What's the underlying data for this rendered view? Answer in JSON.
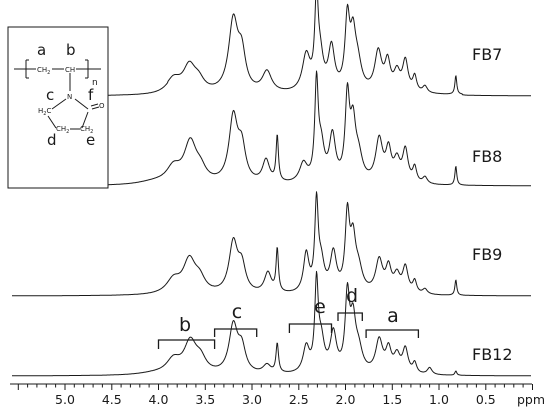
{
  "chart_data": {
    "type": "line",
    "xlabel": "ppm",
    "x_reversed": true,
    "xlim": [
      0.0,
      5.5
    ],
    "x_ticks": [
      "5.0",
      "4.5",
      "4.0",
      "3.5",
      "3.0",
      "2.5",
      "2.0",
      "1.5",
      "1.0",
      "0.5"
    ],
    "x_tick_values": [
      5.0,
      4.5,
      4.0,
      3.5,
      3.0,
      2.5,
      2.0,
      1.5,
      1.0,
      0.5
    ],
    "grid": false,
    "series": [
      {
        "name": "FB7",
        "baseline_level": 0.01,
        "peaks": [
          {
            "ppm": 3.84,
            "height": 0.16,
            "width": 0.09
          },
          {
            "ppm": 3.67,
            "height": 0.3,
            "width": 0.08
          },
          {
            "ppm": 3.57,
            "height": 0.12,
            "width": 0.07
          },
          {
            "ppm": 3.2,
            "height": 0.82,
            "width": 0.06
          },
          {
            "ppm": 3.11,
            "height": 0.4,
            "width": 0.05
          },
          {
            "ppm": 2.84,
            "height": 0.24,
            "width": 0.06
          },
          {
            "ppm": 2.42,
            "height": 0.42,
            "width": 0.05
          },
          {
            "ppm": 2.31,
            "height": 1.0,
            "width": 0.022
          },
          {
            "ppm": 2.27,
            "height": 0.35,
            "width": 0.04
          },
          {
            "ppm": 2.15,
            "height": 0.5,
            "width": 0.04
          },
          {
            "ppm": 1.98,
            "height": 0.8,
            "width": 0.03
          },
          {
            "ppm": 1.92,
            "height": 0.55,
            "width": 0.035
          },
          {
            "ppm": 1.87,
            "height": 0.3,
            "width": 0.05
          },
          {
            "ppm": 1.65,
            "height": 0.46,
            "width": 0.045
          },
          {
            "ppm": 1.55,
            "height": 0.33,
            "width": 0.035
          },
          {
            "ppm": 1.45,
            "height": 0.22,
            "width": 0.04
          },
          {
            "ppm": 1.36,
            "height": 0.36,
            "width": 0.035
          },
          {
            "ppm": 1.26,
            "height": 0.18,
            "width": 0.025
          },
          {
            "ppm": 1.15,
            "height": 0.08,
            "width": 0.03
          },
          {
            "ppm": 0.82,
            "height": 0.22,
            "width": 0.012
          }
        ]
      },
      {
        "name": "FB8",
        "baseline_level": 0.0,
        "peaks": [
          {
            "ppm": 4.05,
            "height": 0.03,
            "width": 0.2
          },
          {
            "ppm": 3.84,
            "height": 0.16,
            "width": 0.09
          },
          {
            "ppm": 3.66,
            "height": 0.42,
            "width": 0.08
          },
          {
            "ppm": 3.55,
            "height": 0.12,
            "width": 0.07
          },
          {
            "ppm": 3.2,
            "height": 0.68,
            "width": 0.055
          },
          {
            "ppm": 3.11,
            "height": 0.35,
            "width": 0.05
          },
          {
            "ppm": 2.85,
            "height": 0.24,
            "width": 0.045
          },
          {
            "ppm": 2.73,
            "height": 0.48,
            "width": 0.015
          },
          {
            "ppm": 2.45,
            "height": 0.2,
            "width": 0.05
          },
          {
            "ppm": 2.31,
            "height": 1.0,
            "width": 0.022
          },
          {
            "ppm": 2.26,
            "height": 0.35,
            "width": 0.04
          },
          {
            "ppm": 2.14,
            "height": 0.48,
            "width": 0.04
          },
          {
            "ppm": 1.98,
            "height": 0.85,
            "width": 0.028
          },
          {
            "ppm": 1.92,
            "height": 0.55,
            "width": 0.035
          },
          {
            "ppm": 1.86,
            "height": 0.25,
            "width": 0.05
          },
          {
            "ppm": 1.64,
            "height": 0.45,
            "width": 0.045
          },
          {
            "ppm": 1.54,
            "height": 0.32,
            "width": 0.035
          },
          {
            "ppm": 1.45,
            "height": 0.22,
            "width": 0.04
          },
          {
            "ppm": 1.36,
            "height": 0.34,
            "width": 0.035
          },
          {
            "ppm": 1.26,
            "height": 0.16,
            "width": 0.025
          },
          {
            "ppm": 1.15,
            "height": 0.07,
            "width": 0.03
          },
          {
            "ppm": 0.82,
            "height": 0.2,
            "width": 0.012
          }
        ]
      },
      {
        "name": "FB9",
        "baseline_level": 0.0,
        "peaks": [
          {
            "ppm": 3.84,
            "height": 0.16,
            "width": 0.09
          },
          {
            "ppm": 3.67,
            "height": 0.38,
            "width": 0.08
          },
          {
            "ppm": 3.56,
            "height": 0.15,
            "width": 0.07
          },
          {
            "ppm": 3.2,
            "height": 0.58,
            "width": 0.055
          },
          {
            "ppm": 3.11,
            "height": 0.3,
            "width": 0.05
          },
          {
            "ppm": 2.83,
            "height": 0.24,
            "width": 0.045
          },
          {
            "ppm": 2.73,
            "height": 0.5,
            "width": 0.015
          },
          {
            "ppm": 2.42,
            "height": 0.45,
            "width": 0.035
          },
          {
            "ppm": 2.31,
            "height": 1.0,
            "width": 0.022
          },
          {
            "ppm": 2.26,
            "height": 0.32,
            "width": 0.04
          },
          {
            "ppm": 2.13,
            "height": 0.45,
            "width": 0.04
          },
          {
            "ppm": 1.98,
            "height": 0.85,
            "width": 0.028
          },
          {
            "ppm": 1.92,
            "height": 0.55,
            "width": 0.035
          },
          {
            "ppm": 1.86,
            "height": 0.25,
            "width": 0.05
          },
          {
            "ppm": 1.64,
            "height": 0.38,
            "width": 0.045
          },
          {
            "ppm": 1.54,
            "height": 0.28,
            "width": 0.035
          },
          {
            "ppm": 1.45,
            "height": 0.2,
            "width": 0.04
          },
          {
            "ppm": 1.36,
            "height": 0.3,
            "width": 0.035
          },
          {
            "ppm": 1.26,
            "height": 0.14,
            "width": 0.025
          },
          {
            "ppm": 1.15,
            "height": 0.06,
            "width": 0.03
          },
          {
            "ppm": 0.82,
            "height": 0.18,
            "width": 0.012
          }
        ]
      },
      {
        "name": "FB12",
        "baseline_level": 0.0,
        "peaks": [
          {
            "ppm": 4.05,
            "height": 0.02,
            "width": 0.2
          },
          {
            "ppm": 3.84,
            "height": 0.16,
            "width": 0.09
          },
          {
            "ppm": 3.66,
            "height": 0.36,
            "width": 0.08
          },
          {
            "ppm": 3.55,
            "height": 0.15,
            "width": 0.07
          },
          {
            "ppm": 3.2,
            "height": 0.55,
            "width": 0.055
          },
          {
            "ppm": 3.11,
            "height": 0.28,
            "width": 0.05
          },
          {
            "ppm": 2.84,
            "height": 0.1,
            "width": 0.05
          },
          {
            "ppm": 2.73,
            "height": 0.34,
            "width": 0.016
          },
          {
            "ppm": 2.42,
            "height": 0.3,
            "width": 0.04
          },
          {
            "ppm": 2.31,
            "height": 1.0,
            "width": 0.022
          },
          {
            "ppm": 2.26,
            "height": 0.35,
            "width": 0.04
          },
          {
            "ppm": 2.13,
            "height": 0.45,
            "width": 0.04
          },
          {
            "ppm": 1.98,
            "height": 0.85,
            "width": 0.028
          },
          {
            "ppm": 1.92,
            "height": 0.55,
            "width": 0.035
          },
          {
            "ppm": 1.86,
            "height": 0.25,
            "width": 0.05
          },
          {
            "ppm": 1.64,
            "height": 0.38,
            "width": 0.045
          },
          {
            "ppm": 1.54,
            "height": 0.26,
            "width": 0.035
          },
          {
            "ppm": 1.45,
            "height": 0.2,
            "width": 0.04
          },
          {
            "ppm": 1.36,
            "height": 0.28,
            "width": 0.035
          },
          {
            "ppm": 1.26,
            "height": 0.12,
            "width": 0.025
          },
          {
            "ppm": 1.1,
            "height": 0.08,
            "width": 0.03
          },
          {
            "ppm": 0.82,
            "height": 0.05,
            "width": 0.012
          }
        ]
      }
    ],
    "peak_assignments": [
      {
        "label": "b",
        "from_ppm": 4.0,
        "to_ppm": 3.4
      },
      {
        "label": "c",
        "from_ppm": 3.4,
        "to_ppm": 2.95
      },
      {
        "label": "e",
        "from_ppm": 2.6,
        "to_ppm": 2.15
      },
      {
        "label": "d",
        "from_ppm": 2.08,
        "to_ppm": 1.82
      },
      {
        "label": "a",
        "from_ppm": 1.78,
        "to_ppm": 1.22
      }
    ]
  },
  "structure": {
    "chain_labels": [
      "a",
      "b"
    ],
    "ring_labels": [
      "c",
      "f",
      "d",
      "e"
    ],
    "atoms": {
      "ch2": "CH",
      "ch2_sub": "2",
      "ch": "CH",
      "n": "N",
      "subscript_n": "n",
      "o": "O",
      "h2c": "H",
      "h2c_sub": "2",
      "h2c_c": "C",
      "ring_ch2": "CH",
      "ring_ch2_sub": "2"
    }
  }
}
